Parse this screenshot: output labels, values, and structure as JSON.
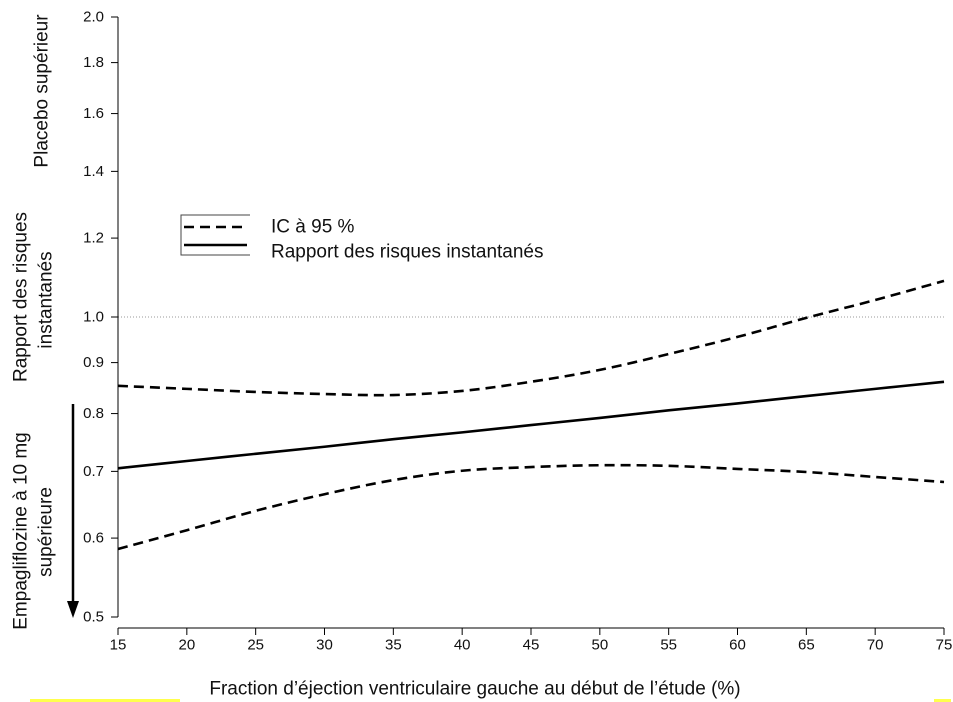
{
  "chart_data": {
    "type": "line",
    "xlabel": "Fraction d’éjection ventriculaire gauche au début de l’étude (%)",
    "ylabel": [
      "Rapport des risques",
      "instantanés"
    ],
    "ylabel_upper_region": "Placebo supérieur",
    "ylabel_lower_region": [
      "Empagliflozine à 10 mg",
      "supérieure"
    ],
    "lower_region_arrow": "down",
    "yscale": "log",
    "xlim": [
      15,
      75
    ],
    "ylim": [
      0.5,
      2.0
    ],
    "xticks": [
      15,
      20,
      25,
      30,
      35,
      40,
      45,
      50,
      55,
      60,
      65,
      70,
      75
    ],
    "yticks": [
      "0.5",
      "0.6",
      "0.7",
      "0.8",
      "0.9",
      "1.0",
      "1.2",
      "1.4",
      "1.6",
      "1.8",
      "2.0"
    ],
    "reference_line": {
      "y": 1.0,
      "style": "dotted",
      "color": "#9a9a9a"
    },
    "grid": false,
    "legend": "top-left",
    "x": [
      15,
      20,
      25,
      30,
      35,
      40,
      45,
      50,
      55,
      60,
      65,
      70,
      75
    ],
    "series": [
      {
        "name": "Rapport des risques instantanés",
        "style": "solid",
        "color": "#000000",
        "values": [
          0.705,
          0.717,
          0.729,
          0.741,
          0.754,
          0.766,
          0.779,
          0.792,
          0.806,
          0.819,
          0.833,
          0.847,
          0.861
        ]
      },
      {
        "name": "IC à 95 %",
        "style": "dashed",
        "color": "#000000",
        "upper": [
          0.853,
          0.847,
          0.841,
          0.837,
          0.835,
          0.843,
          0.861,
          0.885,
          0.918,
          0.955,
          0.998,
          1.04,
          1.087
        ],
        "lower": [
          0.585,
          0.611,
          0.639,
          0.664,
          0.686,
          0.701,
          0.707,
          0.71,
          0.709,
          0.704,
          0.699,
          0.691,
          0.683
        ]
      }
    ]
  }
}
